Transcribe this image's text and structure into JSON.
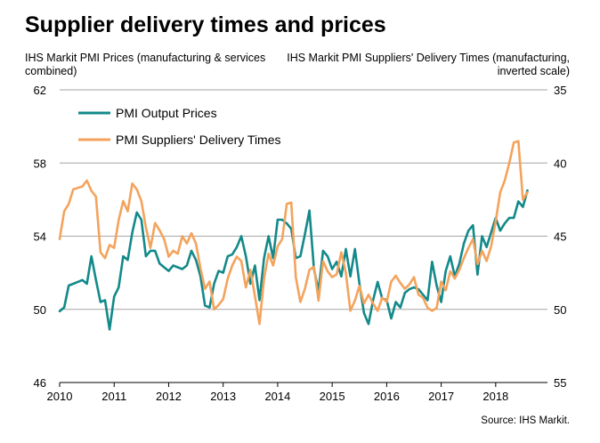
{
  "title": "Supplier delivery times and prices",
  "source": "Source: IHS Markit.",
  "colors": {
    "output_prices": "#13898a",
    "delivery_times": "#f4a35c",
    "grid": "#a6a6a6"
  },
  "chart_data": {
    "type": "line",
    "title": "Supplier delivery times and prices",
    "y_left": {
      "label": "IHS Markit PMI Prices (manufacturing & services combined)",
      "ylim": [
        46,
        62
      ],
      "ticks": [
        "46",
        "50",
        "54",
        "58",
        "62"
      ]
    },
    "y_right": {
      "label": "IHS Markit PMI Suppliers' Delivery Times (manufacturing, inverted scale)",
      "ylim": [
        55,
        35
      ],
      "inverted": true,
      "ticks": [
        "35",
        "40",
        "45",
        "50",
        "55"
      ]
    },
    "x": {
      "range": [
        2010.0,
        2018.95
      ],
      "ticks": [
        "2010",
        "2011",
        "2012",
        "2013",
        "2014",
        "2015",
        "2016",
        "2017",
        "2018"
      ]
    },
    "legend": [
      "PMI Output Prices",
      "PMI Suppliers' Delivery Times"
    ],
    "legend_position": "top-left",
    "grid": true,
    "series": [
      {
        "name": "PMI Output Prices",
        "axis": "left",
        "x_start": "2010-01",
        "frequency": "monthly",
        "values": [
          49.9,
          50.1,
          51.3,
          51.4,
          51.5,
          51.6,
          51.4,
          52.9,
          51.6,
          50.4,
          50.5,
          48.9,
          50.7,
          51.2,
          52.9,
          52.7,
          54.2,
          55.3,
          54.9,
          52.9,
          53.2,
          53.2,
          52.5,
          52.3,
          52.1,
          52.4,
          52.3,
          52.2,
          52.4,
          53.2,
          52.7,
          51.8,
          50.2,
          50.1,
          51.4,
          52.1,
          52.0,
          52.9,
          53.0,
          53.4,
          54.0,
          52.9,
          51.4,
          52.4,
          50.5,
          52.8,
          54.0,
          52.8,
          54.9,
          54.9,
          54.7,
          54.4,
          52.8,
          52.9,
          54.1,
          55.4,
          52.2,
          51.0,
          53.2,
          52.9,
          52.2,
          52.6,
          51.8,
          53.3,
          51.8,
          53.3,
          51.4,
          49.8,
          49.2,
          50.5,
          51.5,
          50.6,
          50.5,
          49.5,
          50.4,
          50.1,
          50.9,
          51.1,
          51.2,
          51.1,
          50.8,
          50.5,
          52.6,
          51.3,
          50.4,
          52.1,
          52.9,
          51.8,
          52.5,
          53.6,
          54.3,
          54.6,
          51.9,
          54.0,
          53.4,
          54.2,
          55.0,
          54.3,
          54.7,
          55.0,
          55.0,
          55.9,
          55.6,
          56.5
        ]
      },
      {
        "name": "PMI Suppliers' Delivery Times",
        "axis": "right",
        "x_start": "2010-01",
        "frequency": "monthly",
        "values": [
          45.2,
          43.3,
          42.8,
          41.8,
          41.7,
          41.6,
          41.2,
          41.9,
          42.3,
          46.1,
          46.5,
          45.6,
          45.8,
          43.9,
          42.6,
          43.3,
          41.4,
          41.8,
          42.6,
          44.4,
          45.8,
          44.1,
          44.6,
          45.2,
          46.4,
          46.0,
          46.2,
          45.0,
          45.5,
          44.8,
          45.5,
          47.2,
          48.6,
          48.1,
          50.0,
          49.7,
          49.3,
          47.9,
          47.0,
          46.4,
          46.7,
          48.5,
          47.3,
          49.1,
          51.0,
          47.9,
          46.2,
          47.0,
          45.7,
          45.2,
          42.8,
          42.7,
          47.8,
          49.5,
          48.6,
          47.3,
          47.1,
          49.4,
          46.7,
          47.4,
          47.8,
          47.6,
          46.1,
          47.5,
          50.1,
          49.4,
          48.4,
          49.6,
          49.0,
          49.6,
          50.1,
          49.2,
          49.5,
          48.1,
          47.7,
          48.2,
          48.6,
          48.3,
          47.8,
          49.0,
          49.2,
          49.9,
          50.1,
          49.9,
          48.1,
          48.7,
          47.4,
          47.9,
          47.3,
          46.5,
          45.8,
          45.2,
          46.9,
          46.0,
          46.7,
          45.7,
          44.0,
          42.0,
          41.2,
          40.0,
          38.6,
          38.5,
          42.5,
          42.0
        ]
      }
    ]
  }
}
